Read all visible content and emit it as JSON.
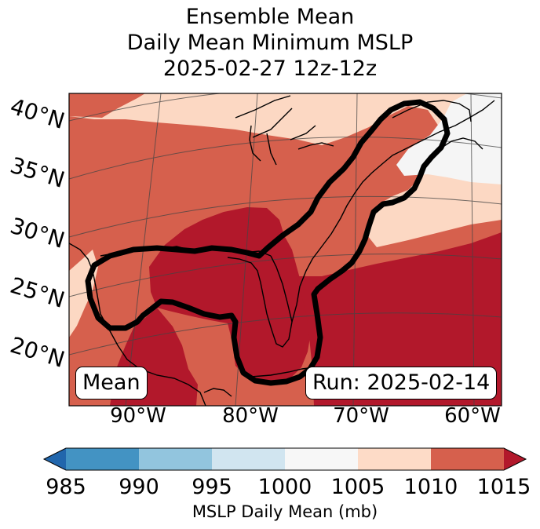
{
  "title": {
    "line1": "Ensemble Mean",
    "line2": "Daily Mean Minimum MSLP",
    "line3": "2025-02-27 12z-12z"
  },
  "map": {
    "lat_labels": [
      "40°N",
      "35°N",
      "30°N",
      "25°N",
      "20°N"
    ],
    "lon_labels": [
      "90°W",
      "80°W",
      "70°W",
      "60°W"
    ],
    "left_box": "Mean",
    "run_box": "Run: 2025-02-14",
    "fill_colors": {
      "lt1000": "#f5f5f5",
      "1005_1010": "#fcd8c3",
      "1010_1015": "#d6604d",
      "gt1015": "#b2182b"
    }
  },
  "colorbar": {
    "ticks": [
      "985",
      "990",
      "995",
      "1000",
      "1005",
      "1010",
      "1015"
    ],
    "colors": [
      "#2166ac",
      "#4393c3",
      "#92c5de",
      "#d1e5f0",
      "#f7f7f7",
      "#fddbc7",
      "#d6604d",
      "#b2182b"
    ],
    "label": "MSLP Daily Mean (mb)"
  }
}
